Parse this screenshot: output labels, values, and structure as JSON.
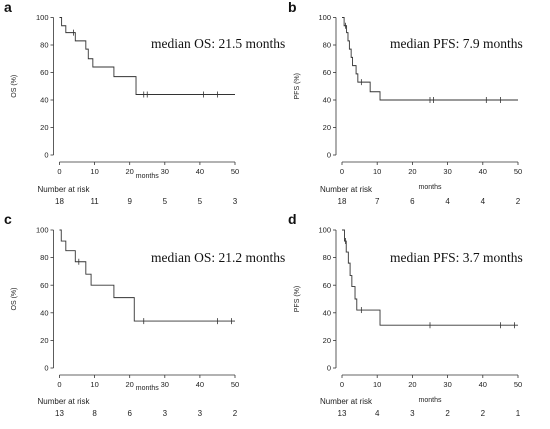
{
  "chart_data": [
    {
      "type": "line",
      "panel": "a",
      "median_text": "median OS: 21.5 months",
      "xlabel": "months",
      "ylabel": "OS (%)",
      "xlim": [
        0,
        50
      ],
      "ylim": [
        0,
        100
      ],
      "xticks": [
        "0",
        "10",
        "20",
        "30",
        "40",
        "50"
      ],
      "yticks": [
        "0",
        "20",
        "40",
        "60",
        "80",
        "100"
      ],
      "risk_title": "Number at risk",
      "risk_values": [
        "18",
        "11",
        "9",
        "5",
        "5",
        "3"
      ],
      "steps": [
        [
          0,
          100
        ],
        [
          0.6,
          94
        ],
        [
          1.8,
          89
        ],
        [
          4,
          89
        ],
        [
          4.5,
          83
        ],
        [
          7,
          83
        ],
        [
          7.5,
          77
        ],
        [
          8.2,
          70
        ],
        [
          9.5,
          64
        ],
        [
          15,
          64
        ],
        [
          15.5,
          57
        ],
        [
          21.5,
          57
        ],
        [
          21.8,
          44
        ],
        [
          50,
          44
        ]
      ],
      "censors": [
        [
          4,
          89
        ],
        [
          24,
          44
        ],
        [
          25,
          44
        ],
        [
          41,
          44
        ],
        [
          45,
          44
        ]
      ]
    },
    {
      "type": "line",
      "panel": "b",
      "median_text": "median PFS: 7.9 months",
      "xlabel": "months",
      "ylabel": "PFS (%)",
      "xlim": [
        0,
        50
      ],
      "ylim": [
        0,
        100
      ],
      "xticks": [
        "0",
        "10",
        "20",
        "30",
        "40",
        "50"
      ],
      "yticks": [
        "0",
        "20",
        "40",
        "60",
        "80",
        "100"
      ],
      "risk_title": "Number at risk",
      "risk_values": [
        "18",
        "7",
        "6",
        "4",
        "4",
        "2"
      ],
      "steps": [
        [
          0,
          100
        ],
        [
          0.6,
          94
        ],
        [
          1.3,
          89
        ],
        [
          1.7,
          83
        ],
        [
          2.1,
          77
        ],
        [
          2.6,
          71
        ],
        [
          3,
          65
        ],
        [
          4,
          59
        ],
        [
          4.5,
          53
        ],
        [
          7.5,
          53
        ],
        [
          8,
          46
        ],
        [
          10.5,
          46
        ],
        [
          10.8,
          40
        ],
        [
          50,
          40
        ]
      ],
      "censors": [
        [
          1,
          94
        ],
        [
          5.5,
          53
        ],
        [
          25,
          40
        ],
        [
          26,
          40
        ],
        [
          41,
          40
        ],
        [
          45,
          40
        ]
      ]
    },
    {
      "type": "line",
      "panel": "c",
      "median_text": "median OS: 21.2 months",
      "xlabel": "months",
      "ylabel": "OS (%)",
      "xlim": [
        0,
        50
      ],
      "ylim": [
        0,
        100
      ],
      "xticks": [
        "0",
        "10",
        "20",
        "30",
        "40",
        "50"
      ],
      "yticks": [
        "0",
        "20",
        "40",
        "60",
        "80",
        "100"
      ],
      "risk_title": "Number at risk",
      "risk_values": [
        "13",
        "8",
        "6",
        "3",
        "3",
        "2"
      ],
      "steps": [
        [
          0,
          100
        ],
        [
          0.5,
          92
        ],
        [
          1.8,
          85
        ],
        [
          4,
          85
        ],
        [
          4.5,
          77
        ],
        [
          7,
          77
        ],
        [
          7.5,
          68
        ],
        [
          9,
          60
        ],
        [
          15,
          60
        ],
        [
          15.5,
          51
        ],
        [
          21,
          51
        ],
        [
          21.3,
          34
        ],
        [
          50,
          34
        ]
      ],
      "censors": [
        [
          5.5,
          77
        ],
        [
          24,
          34
        ],
        [
          45,
          34
        ],
        [
          49,
          34
        ]
      ]
    },
    {
      "type": "line",
      "panel": "d",
      "median_text": "median PFS: 3.7 months",
      "xlabel": "months",
      "ylabel": "PFS (%)",
      "xlim": [
        0,
        50
      ],
      "ylim": [
        0,
        100
      ],
      "xticks": [
        "0",
        "10",
        "20",
        "30",
        "40",
        "50"
      ],
      "yticks": [
        "0",
        "20",
        "40",
        "60",
        "80",
        "100"
      ],
      "risk_title": "Number at risk",
      "risk_values": [
        "13",
        "4",
        "3",
        "2",
        "2",
        "1"
      ],
      "steps": [
        [
          0,
          100
        ],
        [
          0.7,
          92
        ],
        [
          1.2,
          84
        ],
        [
          1.8,
          76
        ],
        [
          2.3,
          67
        ],
        [
          2.8,
          59
        ],
        [
          3.7,
          50
        ],
        [
          4.2,
          42
        ],
        [
          10.5,
          42
        ],
        [
          10.8,
          31
        ],
        [
          50,
          31
        ]
      ],
      "censors": [
        [
          1,
          92
        ],
        [
          5.5,
          42
        ],
        [
          25,
          31
        ],
        [
          45,
          31
        ],
        [
          49,
          31
        ]
      ]
    }
  ]
}
